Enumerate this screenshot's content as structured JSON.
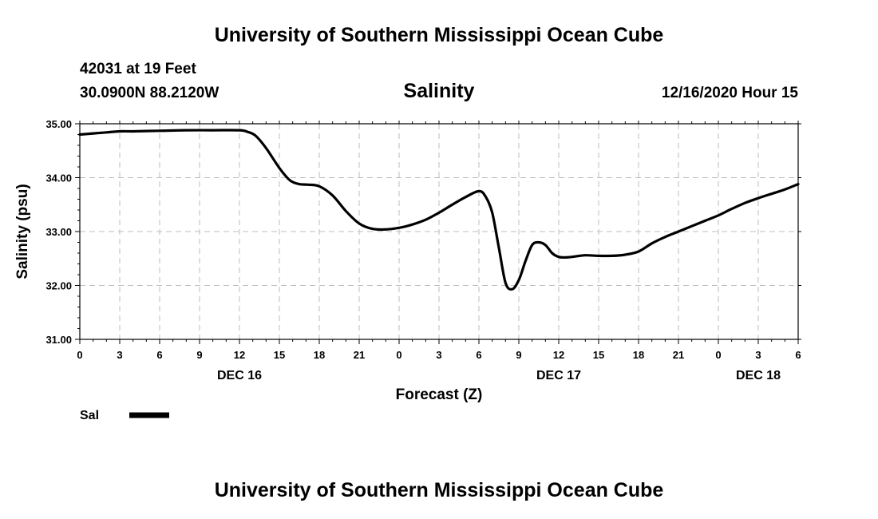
{
  "header": {
    "title": "University of Southern Mississippi Ocean Cube",
    "station": "42031 at 19 Feet",
    "coords": "30.0900N 88.2120W",
    "datetime": "12/16/2020 Hour 15",
    "footer_title": "University of Southern Mississippi Ocean Cube"
  },
  "chart_data": {
    "type": "line",
    "title": "Salinity",
    "xlabel": "Forecast (Z)",
    "ylabel": "Salinity (psu)",
    "x_unit": "hours from DEC 16 00Z",
    "xlim": [
      0,
      54
    ],
    "ylim": [
      31.0,
      35.0
    ],
    "grid": true,
    "x_ticks": [
      {
        "h": 0,
        "label": "0"
      },
      {
        "h": 3,
        "label": "3"
      },
      {
        "h": 6,
        "label": "6"
      },
      {
        "h": 9,
        "label": "9"
      },
      {
        "h": 12,
        "label": "12"
      },
      {
        "h": 15,
        "label": "15"
      },
      {
        "h": 18,
        "label": "18"
      },
      {
        "h": 21,
        "label": "21"
      },
      {
        "h": 24,
        "label": "0"
      },
      {
        "h": 27,
        "label": "3"
      },
      {
        "h": 30,
        "label": "6"
      },
      {
        "h": 33,
        "label": "9"
      },
      {
        "h": 36,
        "label": "12"
      },
      {
        "h": 39,
        "label": "15"
      },
      {
        "h": 42,
        "label": "18"
      },
      {
        "h": 45,
        "label": "21"
      },
      {
        "h": 48,
        "label": "0"
      },
      {
        "h": 51,
        "label": "3"
      },
      {
        "h": 54,
        "label": "6"
      }
    ],
    "y_ticks": [
      {
        "v": 31,
        "label": "31.00"
      },
      {
        "v": 32,
        "label": "32.00"
      },
      {
        "v": 33,
        "label": "33.00"
      },
      {
        "v": 34,
        "label": "34.00"
      },
      {
        "v": 35,
        "label": "35.00"
      }
    ],
    "date_labels": [
      {
        "h": 12,
        "label": "DEC 16"
      },
      {
        "h": 36,
        "label": "DEC 17"
      },
      {
        "h": 51,
        "label": "DEC 18"
      }
    ],
    "legend": {
      "label": "Sal",
      "placement": "bottom-left"
    },
    "series": [
      {
        "name": "Sal",
        "color": "#000000",
        "x": [
          0,
          1,
          2,
          3,
          4,
          6,
          8,
          10,
          12,
          12.6,
          13.2,
          14,
          15,
          15.8,
          16.5,
          17.2,
          18,
          19,
          20,
          21,
          22,
          23,
          24,
          25,
          26,
          27,
          28,
          29,
          30,
          30.5,
          31,
          31.5,
          32,
          32.5,
          33,
          33.5,
          34,
          34.5,
          35,
          35.5,
          36,
          36.5,
          37,
          38,
          39,
          40,
          41,
          42,
          43,
          44,
          45,
          46,
          47,
          48,
          49,
          50,
          51,
          52,
          53,
          54
        ],
        "y": [
          34.8,
          34.82,
          34.84,
          34.86,
          34.86,
          34.87,
          34.88,
          34.88,
          34.88,
          34.85,
          34.78,
          34.55,
          34.18,
          33.95,
          33.88,
          33.87,
          33.84,
          33.67,
          33.38,
          33.15,
          33.05,
          33.04,
          33.07,
          33.13,
          33.22,
          33.35,
          33.5,
          33.64,
          33.75,
          33.65,
          33.35,
          32.7,
          32.05,
          31.93,
          32.1,
          32.45,
          32.75,
          32.8,
          32.75,
          32.6,
          32.53,
          32.52,
          32.53,
          32.56,
          32.55,
          32.55,
          32.57,
          32.63,
          32.78,
          32.9,
          33.0,
          33.1,
          33.2,
          33.3,
          33.42,
          33.53,
          33.62,
          33.7,
          33.78,
          33.88
        ]
      }
    ]
  }
}
